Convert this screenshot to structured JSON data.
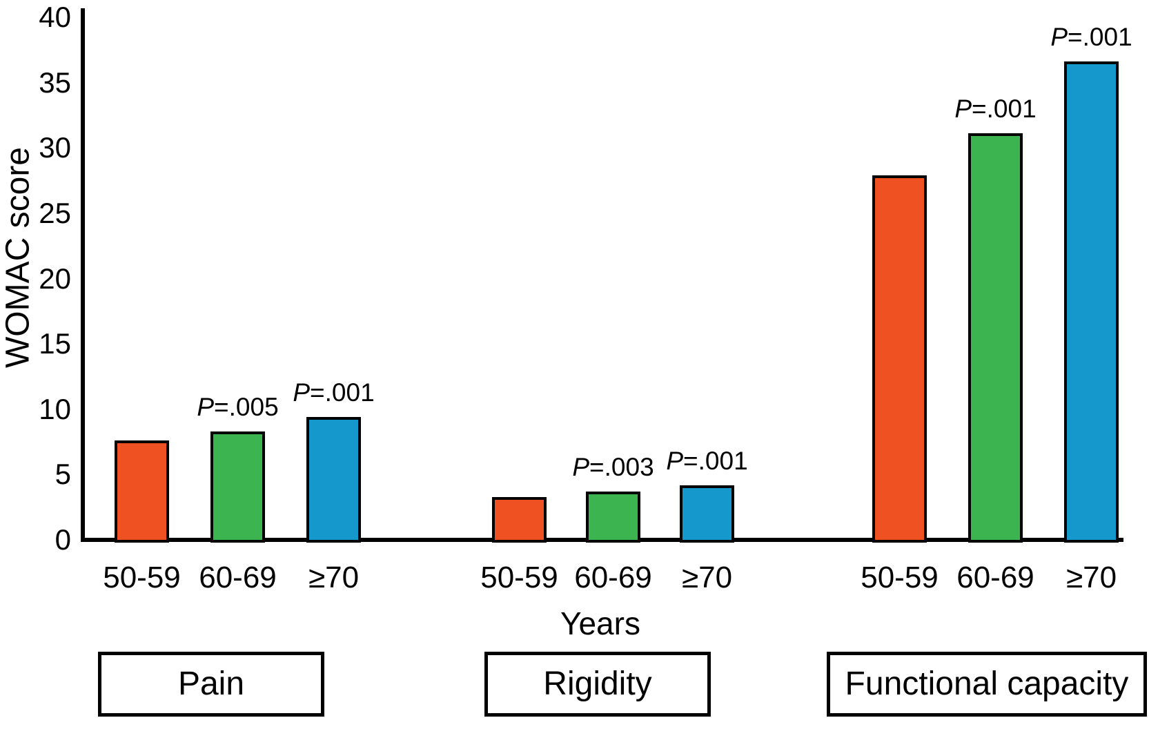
{
  "chart_data": {
    "type": "bar",
    "title": "",
    "ylabel": "WOMAC score",
    "xlabel": "Years",
    "ylim": [
      0,
      40
    ],
    "yticks": [
      40,
      35,
      30,
      25,
      20,
      15,
      10,
      5,
      0
    ],
    "categories": [
      "50-59",
      "60-69",
      "≥70"
    ],
    "bar_colors": [
      "#F05123",
      "#3CB450",
      "#1598CB"
    ],
    "bar_outline_color": "#000000",
    "grid": false,
    "legend_position": "none",
    "groups": [
      {
        "name": "Pain",
        "bars": [
          {
            "category": "50-59",
            "value": 7.6,
            "p": null
          },
          {
            "category": "60-69",
            "value": 8.3,
            "p": "P=.005"
          },
          {
            "category": "≥70",
            "value": 9.4,
            "p": "P=.001"
          }
        ]
      },
      {
        "name": "Rigidity",
        "bars": [
          {
            "category": "50-59",
            "value": 3.3,
            "p": null
          },
          {
            "category": "60-69",
            "value": 3.7,
            "p": "P=.003"
          },
          {
            "category": "≥70",
            "value": 4.2,
            "p": "P=.001"
          }
        ]
      },
      {
        "name": "Functional capacity",
        "bars": [
          {
            "category": "50-59",
            "value": 27.9,
            "p": null
          },
          {
            "category": "60-69",
            "value": 31.1,
            "p": "P=.001"
          },
          {
            "category": "≥70",
            "value": 36.6,
            "p": "P=.001"
          }
        ]
      }
    ]
  }
}
